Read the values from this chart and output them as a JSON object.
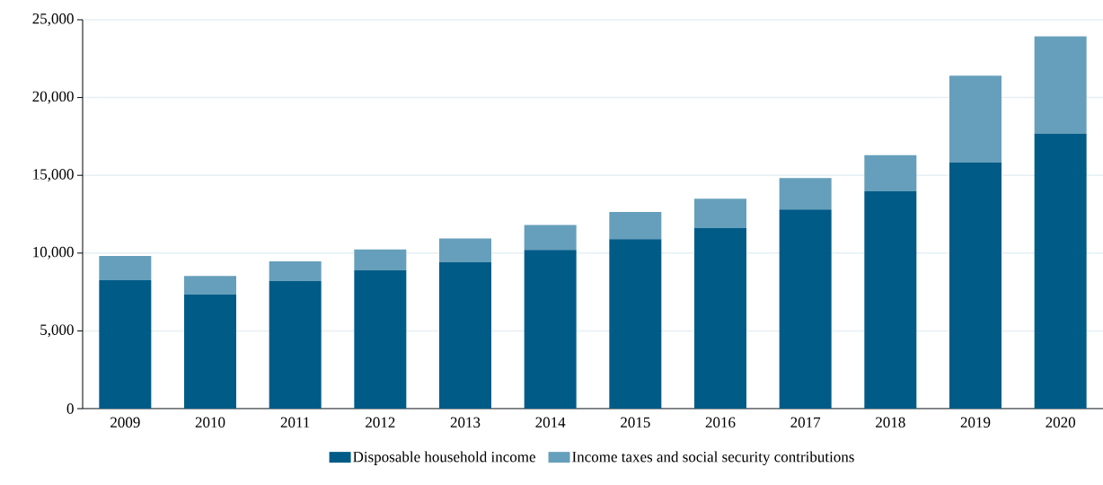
{
  "chart_data": {
    "type": "bar",
    "stacked": true,
    "categories": [
      "2009",
      "2010",
      "2011",
      "2012",
      "2013",
      "2014",
      "2015",
      "2016",
      "2017",
      "2018",
      "2019",
      "2020"
    ],
    "series": [
      {
        "name": "Disposable household income",
        "color": "#005b87",
        "values": [
          8250,
          7330,
          8210,
          8900,
          9430,
          10200,
          10900,
          11600,
          12800,
          13970,
          15830,
          17660
        ]
      },
      {
        "name": "Income taxes and social security contributions",
        "color": "#669fbb",
        "values": [
          1570,
          1200,
          1260,
          1330,
          1510,
          1600,
          1750,
          1900,
          2030,
          2330,
          5570,
          6270
        ]
      }
    ],
    "ylim": [
      0,
      25000
    ],
    "yticks": [
      {
        "value": 0,
        "label": "0"
      },
      {
        "value": 5000,
        "label": "5,000"
      },
      {
        "value": 10000,
        "label": "10,000"
      },
      {
        "value": 15000,
        "label": "15,000"
      },
      {
        "value": 20000,
        "label": "20,000"
      },
      {
        "value": 25000,
        "label": "25,000"
      }
    ],
    "grid": "y",
    "legend": "bottom"
  }
}
